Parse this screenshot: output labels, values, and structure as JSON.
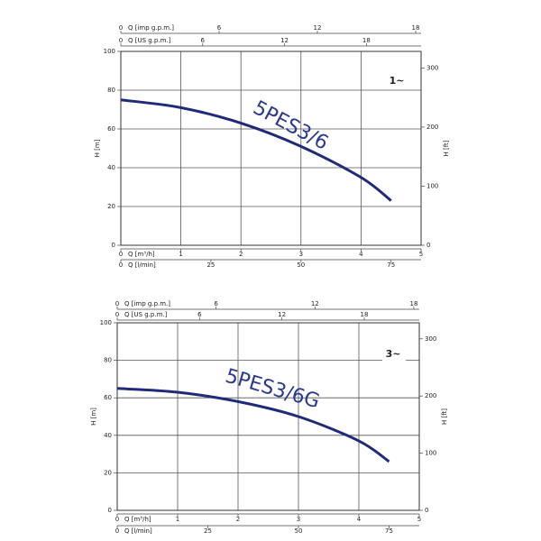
{
  "chart_data": [
    {
      "type": "line",
      "y_label": "H [m]",
      "y2_label": "H [ft]",
      "phase_label": "1~",
      "grid": true,
      "x": [
        0,
        1,
        2,
        3,
        4,
        4.5
      ],
      "series": [
        {
          "name": "5PES3/6",
          "color": "#1f2a78",
          "values": [
            75,
            71,
            63,
            51,
            35,
            23
          ]
        }
      ],
      "ylim": [
        0,
        100
      ],
      "yticks": [
        0,
        20,
        40,
        60,
        80,
        100
      ],
      "y2lim": [
        0,
        328.08
      ],
      "y2ticks": [
        0,
        100,
        200,
        300
      ],
      "x_axes": [
        {
          "label": "Q [m³/h]",
          "position": "bottom",
          "xlim": [
            0,
            5
          ],
          "xticks": [
            0,
            1,
            2,
            3,
            4,
            5
          ]
        },
        {
          "label": "Q [l/min]",
          "position": "bottom",
          "xlim": [
            0,
            83.33
          ],
          "xticks": [
            0,
            25,
            50,
            75
          ]
        },
        {
          "label": "Q [imp g.p.m.]",
          "position": "top",
          "xlim": [
            0,
            18.33
          ],
          "xticks": [
            0,
            6,
            12,
            18
          ]
        },
        {
          "label": "Q [US g.p.m.]",
          "position": "top",
          "xlim": [
            0,
            22.01
          ],
          "xticks": [
            0,
            6,
            12,
            18
          ]
        }
      ]
    },
    {
      "type": "line",
      "y_label": "H [m]",
      "y2_label": "H [ft]",
      "phase_label": "3~",
      "grid": true,
      "x": [
        0,
        1,
        2,
        3,
        4,
        4.5
      ],
      "series": [
        {
          "name": "5PES3/6G",
          "color": "#1f2a78",
          "values": [
            65,
            63,
            58,
            50,
            37,
            26
          ]
        }
      ],
      "ylim": [
        0,
        100
      ],
      "yticks": [
        0,
        20,
        40,
        60,
        80,
        100
      ],
      "y2lim": [
        0,
        328.08
      ],
      "y2ticks": [
        0,
        100,
        200,
        300
      ],
      "x_axes": [
        {
          "label": "Q [m³/h]",
          "position": "bottom",
          "xlim": [
            0,
            5
          ],
          "xticks": [
            0,
            1,
            2,
            3,
            4,
            5
          ]
        },
        {
          "label": "Q [l/min]",
          "position": "bottom",
          "xlim": [
            0,
            83.33
          ],
          "xticks": [
            0,
            25,
            50,
            75
          ]
        },
        {
          "label": "Q [imp g.p.m.]",
          "position": "top",
          "xlim": [
            0,
            18.33
          ],
          "xticks": [
            0,
            6,
            12,
            18
          ]
        },
        {
          "label": "Q [US g.p.m.]",
          "position": "top",
          "xlim": [
            0,
            22.01
          ],
          "xticks": [
            0,
            6,
            12,
            18
          ]
        }
      ]
    }
  ]
}
